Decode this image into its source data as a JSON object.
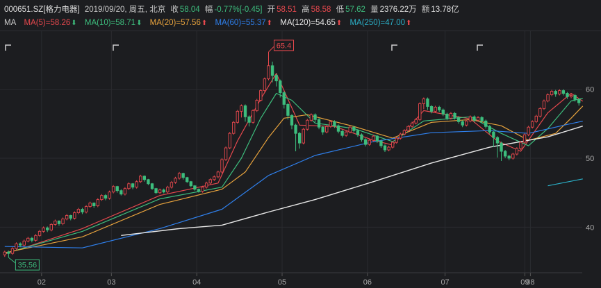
{
  "header": {
    "code": "000651.SZ[格力电器]",
    "date": "2019/09/20, 周五, 北京",
    "close_label": "收",
    "close": "58.04",
    "change_label": "幅",
    "change_pct": "-0.77%",
    "change_abs": "[-0.45]",
    "open_label": "开",
    "open": "58.51",
    "high_label": "高",
    "high": "58.58",
    "low_label": "低",
    "low": "57.62",
    "volume_label": "量",
    "volume": "2376.22万",
    "amount_label": "额",
    "amount": "13.78亿"
  },
  "ma_legend": {
    "title": "MA",
    "items": [
      {
        "label": "MA(5)=58.26",
        "dir": "down",
        "color": "#e5484d"
      },
      {
        "label": "MA(10)=58.71",
        "dir": "down",
        "color": "#3dbd7d"
      },
      {
        "label": "MA(20)=57.56",
        "dir": "up",
        "color": "#e8a33d"
      },
      {
        "label": "MA(60)=55.37",
        "dir": "up",
        "color": "#2f80ed"
      },
      {
        "label": "MA(120)=54.65",
        "dir": "up",
        "color": "#e8e8e8"
      },
      {
        "label": "MA(250)=47.00",
        "dir": "up",
        "color": "#2bb0c8"
      }
    ]
  },
  "colors": {
    "up": "#e5484d",
    "down": "#3dbd7d",
    "grid": "#2a2b2f",
    "axis_text": "#a8a8a8"
  },
  "chart_data": {
    "type": "candlestick",
    "x_ticks": [
      "02",
      "03",
      "04",
      "05",
      "06",
      "07",
      "08",
      "09"
    ],
    "y_ticks": [
      "40",
      "50",
      "60"
    ],
    "ylim": [
      33.4,
      67.6
    ],
    "annotations": {
      "max_label": "65.4",
      "min_label": "35.56"
    },
    "candles": [
      [
        36.0,
        36.4,
        35.7,
        36.6
      ],
      [
        36.4,
        36.2,
        35.6,
        36.6
      ],
      [
        36.2,
        36.9,
        36.0,
        37.1
      ],
      [
        36.9,
        37.6,
        36.7,
        37.8
      ],
      [
        37.6,
        37.4,
        37.1,
        37.8
      ],
      [
        37.4,
        38.0,
        37.2,
        38.2
      ],
      [
        38.0,
        38.4,
        37.8,
        38.6
      ],
      [
        38.4,
        38.1,
        37.8,
        38.6
      ],
      [
        38.1,
        38.8,
        37.9,
        39.0
      ],
      [
        38.8,
        39.4,
        38.6,
        39.6
      ],
      [
        39.4,
        39.9,
        39.2,
        40.1
      ],
      [
        39.9,
        39.6,
        39.3,
        40.1
      ],
      [
        39.6,
        40.4,
        39.4,
        40.6
      ],
      [
        40.4,
        40.9,
        40.2,
        41.1
      ],
      [
        40.9,
        40.5,
        40.2,
        41.0
      ],
      [
        40.5,
        41.2,
        40.3,
        41.4
      ],
      [
        41.2,
        41.7,
        41.0,
        41.9
      ],
      [
        41.7,
        41.3,
        41.0,
        41.8
      ],
      [
        41.3,
        42.1,
        41.1,
        42.3
      ],
      [
        42.1,
        42.6,
        41.9,
        42.8
      ],
      [
        42.6,
        42.2,
        41.9,
        42.8
      ],
      [
        42.2,
        43.0,
        42.0,
        43.2
      ],
      [
        43.0,
        43.5,
        42.8,
        43.7
      ],
      [
        43.5,
        43.1,
        42.8,
        43.6
      ],
      [
        43.1,
        44.0,
        42.9,
        44.2
      ],
      [
        44.0,
        44.6,
        43.8,
        44.8
      ],
      [
        44.6,
        44.2,
        43.9,
        44.8
      ],
      [
        44.2,
        45.1,
        44.0,
        45.3
      ],
      [
        45.1,
        45.9,
        44.9,
        46.1
      ],
      [
        45.9,
        45.3,
        45.0,
        46.0
      ],
      [
        45.3,
        44.8,
        44.6,
        45.5
      ],
      [
        44.8,
        45.6,
        44.6,
        45.8
      ],
      [
        45.6,
        46.3,
        45.4,
        46.5
      ],
      [
        46.3,
        45.8,
        45.5,
        46.4
      ],
      [
        45.8,
        46.6,
        45.6,
        46.8
      ],
      [
        46.6,
        47.4,
        46.4,
        47.6
      ],
      [
        47.4,
        46.9,
        46.6,
        47.5
      ],
      [
        46.9,
        46.3,
        46.1,
        47.0
      ],
      [
        46.3,
        45.6,
        45.4,
        46.4
      ],
      [
        45.6,
        45.0,
        44.8,
        45.7
      ],
      [
        45.0,
        45.4,
        44.8,
        45.6
      ],
      [
        45.4,
        45.1,
        44.9,
        45.6
      ],
      [
        45.1,
        45.8,
        44.9,
        46.0
      ],
      [
        45.8,
        46.5,
        45.6,
        46.7
      ],
      [
        46.5,
        47.1,
        46.3,
        47.3
      ],
      [
        47.1,
        47.8,
        46.9,
        48.0
      ],
      [
        47.8,
        47.2,
        46.9,
        47.9
      ],
      [
        47.2,
        46.6,
        46.4,
        47.3
      ],
      [
        46.6,
        46.0,
        45.8,
        46.7
      ],
      [
        46.0,
        45.5,
        45.3,
        46.1
      ],
      [
        45.5,
        45.2,
        45.0,
        45.6
      ],
      [
        45.2,
        45.8,
        45.0,
        46.0
      ],
      [
        45.8,
        46.4,
        45.6,
        46.6
      ],
      [
        46.4,
        46.9,
        46.2,
        47.1
      ],
      [
        46.9,
        47.3,
        46.7,
        47.5
      ],
      [
        47.3,
        48.0,
        47.1,
        48.2
      ],
      [
        48.0,
        49.8,
        47.8,
        50.0
      ],
      [
        49.8,
        51.5,
        49.6,
        51.7
      ],
      [
        51.5,
        53.6,
        51.3,
        53.8
      ],
      [
        53.6,
        55.2,
        53.4,
        55.4
      ],
      [
        55.2,
        56.8,
        55.0,
        57.0
      ],
      [
        56.8,
        57.6,
        55.9,
        57.8
      ],
      [
        57.6,
        56.0,
        55.3,
        57.8
      ],
      [
        56.0,
        55.2,
        54.6,
        56.2
      ],
      [
        55.2,
        56.9,
        55.0,
        57.1
      ],
      [
        56.9,
        58.4,
        56.7,
        58.6
      ],
      [
        58.4,
        59.8,
        58.2,
        60.0
      ],
      [
        59.8,
        61.5,
        59.6,
        61.7
      ],
      [
        61.5,
        63.4,
        61.3,
        65.4
      ],
      [
        63.4,
        62.0,
        61.0,
        64.0
      ],
      [
        62.0,
        61.2,
        60.4,
        62.3
      ],
      [
        61.2,
        59.5,
        58.8,
        61.4
      ],
      [
        59.5,
        57.8,
        57.2,
        59.7
      ],
      [
        57.8,
        56.2,
        55.6,
        58.0
      ],
      [
        56.2,
        54.8,
        54.2,
        56.4
      ],
      [
        54.8,
        53.6,
        51.0,
        55.0
      ],
      [
        53.6,
        52.2,
        51.4,
        53.8
      ],
      [
        52.2,
        54.2,
        52.0,
        54.4
      ],
      [
        54.2,
        55.5,
        54.0,
        55.7
      ],
      [
        55.5,
        56.3,
        55.3,
        56.5
      ],
      [
        56.3,
        55.6,
        55.2,
        56.5
      ],
      [
        55.6,
        54.5,
        54.2,
        55.8
      ],
      [
        54.5,
        53.8,
        53.4,
        54.7
      ],
      [
        53.8,
        54.6,
        53.6,
        54.8
      ],
      [
        54.6,
        55.3,
        54.4,
        55.5
      ],
      [
        55.3,
        54.7,
        54.4,
        55.5
      ],
      [
        54.7,
        53.9,
        53.6,
        54.9
      ],
      [
        53.9,
        53.3,
        53.0,
        54.1
      ],
      [
        53.3,
        53.8,
        53.1,
        54.0
      ],
      [
        53.8,
        54.5,
        53.6,
        54.7
      ],
      [
        54.5,
        54.0,
        53.7,
        54.7
      ],
      [
        54.0,
        53.4,
        53.1,
        54.2
      ],
      [
        53.4,
        52.7,
        52.4,
        53.6
      ],
      [
        52.7,
        52.0,
        51.7,
        52.9
      ],
      [
        52.0,
        52.6,
        51.8,
        52.8
      ],
      [
        52.6,
        53.2,
        52.4,
        53.4
      ],
      [
        53.2,
        52.5,
        52.2,
        53.4
      ],
      [
        52.5,
        51.8,
        51.5,
        52.7
      ],
      [
        51.8,
        51.2,
        50.9,
        52.0
      ],
      [
        51.2,
        51.6,
        51.0,
        51.8
      ],
      [
        51.6,
        52.3,
        51.4,
        52.5
      ],
      [
        52.3,
        52.9,
        52.1,
        53.1
      ],
      [
        52.9,
        53.5,
        52.7,
        53.7
      ],
      [
        53.5,
        54.0,
        53.3,
        54.2
      ],
      [
        54.0,
        54.6,
        53.8,
        54.8
      ],
      [
        54.6,
        55.1,
        54.4,
        55.3
      ],
      [
        55.1,
        55.6,
        54.9,
        55.8
      ],
      [
        55.6,
        57.9,
        55.4,
        58.1
      ],
      [
        57.9,
        58.6,
        57.1,
        58.8
      ],
      [
        58.6,
        57.5,
        57.0,
        58.8
      ],
      [
        57.5,
        56.8,
        56.5,
        57.7
      ],
      [
        56.8,
        57.4,
        56.6,
        57.6
      ],
      [
        57.4,
        57.0,
        56.7,
        57.6
      ],
      [
        57.0,
        56.4,
        56.1,
        57.2
      ],
      [
        56.4,
        55.8,
        55.5,
        56.6
      ],
      [
        55.8,
        56.5,
        55.6,
        56.7
      ],
      [
        56.5,
        55.9,
        55.6,
        56.7
      ],
      [
        55.9,
        55.3,
        55.0,
        56.1
      ],
      [
        55.3,
        54.8,
        54.5,
        55.5
      ],
      [
        54.8,
        55.4,
        54.6,
        55.6
      ],
      [
        55.4,
        56.0,
        55.2,
        56.2
      ],
      [
        56.0,
        55.5,
        55.2,
        56.2
      ],
      [
        55.5,
        55.9,
        55.3,
        56.1
      ],
      [
        55.9,
        55.4,
        55.1,
        56.1
      ],
      [
        55.4,
        54.6,
        54.3,
        55.6
      ],
      [
        54.6,
        53.8,
        53.5,
        54.8
      ],
      [
        53.8,
        53.0,
        51.6,
        54.0
      ],
      [
        53.0,
        52.2,
        50.1,
        53.2
      ],
      [
        52.2,
        51.0,
        49.6,
        52.4
      ],
      [
        51.0,
        50.3,
        50.0,
        51.2
      ],
      [
        50.3,
        50.0,
        49.7,
        50.5
      ],
      [
        50.0,
        50.6,
        49.8,
        50.8
      ],
      [
        50.6,
        51.4,
        50.4,
        51.6
      ],
      [
        51.4,
        52.3,
        51.2,
        52.5
      ],
      [
        52.3,
        53.4,
        52.1,
        53.6
      ],
      [
        53.4,
        54.5,
        53.2,
        54.7
      ],
      [
        54.5,
        55.3,
        54.3,
        55.5
      ],
      [
        55.3,
        56.1,
        55.1,
        56.3
      ],
      [
        56.1,
        57.2,
        55.9,
        57.4
      ],
      [
        57.2,
        58.3,
        57.0,
        58.5
      ],
      [
        58.3,
        59.2,
        58.1,
        59.4
      ],
      [
        59.2,
        59.7,
        59.0,
        59.9
      ],
      [
        59.7,
        59.3,
        58.9,
        59.9
      ],
      [
        59.3,
        59.8,
        59.1,
        60.0
      ],
      [
        59.8,
        59.4,
        59.1,
        60.0
      ],
      [
        59.4,
        58.9,
        58.6,
        59.6
      ],
      [
        58.9,
        59.1,
        58.7,
        59.3
      ],
      [
        59.1,
        58.5,
        58.2,
        59.3
      ],
      [
        58.5,
        58.04,
        57.62,
        58.58
      ]
    ],
    "ma": {
      "ma5": {
        "color": "#e5484d",
        "points": [
          [
            0,
            36.1
          ],
          [
            20,
            39.8
          ],
          [
            40,
            44.6
          ],
          [
            55,
            46.4
          ],
          [
            60,
            52.5
          ],
          [
            66,
            58.6
          ],
          [
            70,
            62.3
          ],
          [
            76,
            54.8
          ],
          [
            85,
            54.6
          ],
          [
            95,
            52.6
          ],
          [
            100,
            51.9
          ],
          [
            108,
            56.9
          ],
          [
            120,
            55.7
          ],
          [
            127,
            52.5
          ],
          [
            133,
            51.0
          ],
          [
            140,
            56.6
          ],
          [
            146,
            59.4
          ],
          [
            149,
            58.26
          ]
        ]
      },
      "ma10": {
        "color": "#3dbd7d",
        "points": [
          [
            0,
            36.2
          ],
          [
            20,
            39.4
          ],
          [
            40,
            44.1
          ],
          [
            56,
            45.8
          ],
          [
            61,
            50.0
          ],
          [
            66,
            55.8
          ],
          [
            70,
            59.4
          ],
          [
            74,
            58.4
          ],
          [
            80,
            55.1
          ],
          [
            90,
            54.3
          ],
          [
            100,
            52.4
          ],
          [
            108,
            55.4
          ],
          [
            120,
            56.0
          ],
          [
            128,
            53.6
          ],
          [
            135,
            51.8
          ],
          [
            140,
            54.3
          ],
          [
            146,
            58.3
          ],
          [
            149,
            58.71
          ]
        ]
      },
      "ma20": {
        "color": "#e8a33d",
        "points": [
          [
            0,
            36.3
          ],
          [
            20,
            38.6
          ],
          [
            40,
            43.3
          ],
          [
            56,
            45.5
          ],
          [
            62,
            48.0
          ],
          [
            68,
            53.0
          ],
          [
            72,
            55.8
          ],
          [
            78,
            56.3
          ],
          [
            90,
            54.6
          ],
          [
            100,
            52.9
          ],
          [
            110,
            55.2
          ],
          [
            120,
            55.6
          ],
          [
            128,
            54.7
          ],
          [
            135,
            52.6
          ],
          [
            142,
            53.6
          ],
          [
            146,
            55.8
          ],
          [
            149,
            57.56
          ]
        ]
      },
      "ma60": {
        "color": "#2f80ed",
        "points": [
          [
            0,
            37.2
          ],
          [
            20,
            37.0
          ],
          [
            40,
            39.8
          ],
          [
            56,
            42.6
          ],
          [
            68,
            47.5
          ],
          [
            80,
            50.4
          ],
          [
            95,
            52.4
          ],
          [
            110,
            53.7
          ],
          [
            125,
            54.0
          ],
          [
            135,
            53.6
          ],
          [
            145,
            54.9
          ],
          [
            149,
            55.37
          ]
        ]
      },
      "ma120": {
        "color": "#e8e8e8",
        "points": [
          [
            30,
            38.8
          ],
          [
            45,
            39.8
          ],
          [
            56,
            40.3
          ],
          [
            68,
            42.2
          ],
          [
            80,
            44.0
          ],
          [
            95,
            46.6
          ],
          [
            110,
            49.3
          ],
          [
            125,
            51.6
          ],
          [
            140,
            53.1
          ],
          [
            149,
            54.65
          ]
        ]
      },
      "ma250": {
        "color": "#2bb0c8",
        "points": [
          [
            140,
            46.0
          ],
          [
            149,
            47.0
          ]
        ]
      }
    }
  }
}
